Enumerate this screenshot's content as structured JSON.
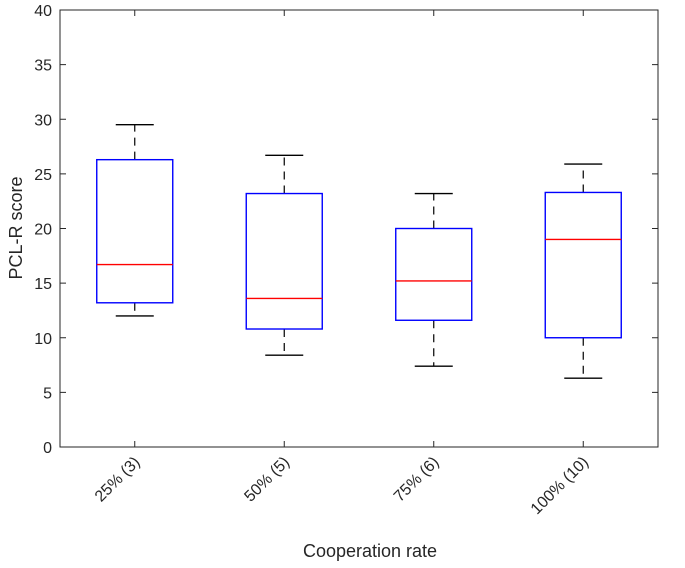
{
  "chart_data": {
    "type": "boxplot",
    "title": "",
    "xlabel": "Cooperation rate",
    "ylabel": "PCL-R score",
    "ylim": [
      0,
      40
    ],
    "yticks": [
      0,
      5,
      10,
      15,
      20,
      25,
      30,
      35,
      40
    ],
    "categories": [
      "25% (3)",
      "50% (5)",
      "75% (6)",
      "100% (10)"
    ],
    "boxes": [
      {
        "whisker_low": 12.0,
        "q1": 13.2,
        "median": 16.7,
        "q3": 26.3,
        "whisker_high": 29.5
      },
      {
        "whisker_low": 8.4,
        "q1": 10.8,
        "median": 13.6,
        "q3": 23.2,
        "whisker_high": 26.7
      },
      {
        "whisker_low": 7.4,
        "q1": 11.6,
        "median": 15.2,
        "q3": 20.0,
        "whisker_high": 23.2
      },
      {
        "whisker_low": 6.3,
        "q1": 10.0,
        "median": 19.0,
        "q3": 23.3,
        "whisker_high": 25.9
      }
    ],
    "colors": {
      "box": "#0000ff",
      "median": "#ff0000",
      "whisker": "#000000",
      "axis": "#262626"
    },
    "grid": false
  }
}
